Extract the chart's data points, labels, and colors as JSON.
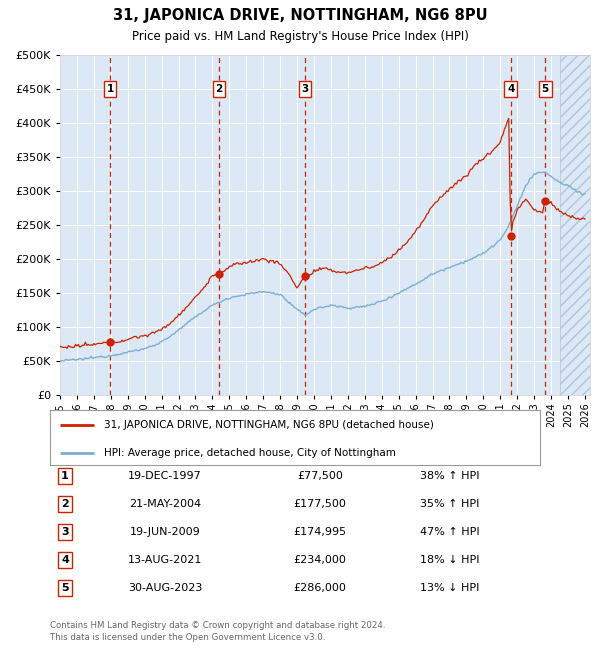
{
  "title": "31, JAPONICA DRIVE, NOTTINGHAM, NG6 8PU",
  "subtitle": "Price paid vs. HM Land Registry's House Price Index (HPI)",
  "footer1": "Contains HM Land Registry data © Crown copyright and database right 2024.",
  "footer2": "This data is licensed under the Open Government Licence v3.0.",
  "legend_line1": "31, JAPONICA DRIVE, NOTTINGHAM, NG6 8PU (detached house)",
  "legend_line2": "HPI: Average price, detached house, City of Nottingham",
  "sale_points": [
    {
      "label": "1",
      "date": "19-DEC-1997",
      "price": 77500,
      "price_str": "£77,500",
      "pct": "38%",
      "dir": "↑",
      "x_year": 1997.96
    },
    {
      "label": "2",
      "date": "21-MAY-2004",
      "price": 177500,
      "price_str": "£177,500",
      "pct": "35%",
      "dir": "↑",
      "x_year": 2004.39
    },
    {
      "label": "3",
      "date": "19-JUN-2009",
      "price": 174995,
      "price_str": "£174,995",
      "pct": "47%",
      "dir": "↑",
      "x_year": 2009.46
    },
    {
      "label": "4",
      "date": "13-AUG-2021",
      "price": 234000,
      "price_str": "£234,000",
      "pct": "18%",
      "dir": "↓",
      "x_year": 2021.62
    },
    {
      "label": "5",
      "date": "30-AUG-2023",
      "price": 286000,
      "price_str": "£286,000",
      "pct": "13%",
      "dir": "↓",
      "x_year": 2023.66
    }
  ],
  "hpi_color": "#7bafd4",
  "price_color": "#cc2200",
  "bg_color": "#dce8f5",
  "grid_color": "#ffffff",
  "ylim": [
    0,
    500000
  ],
  "xlim_start": 1995.0,
  "xlim_end": 2026.0,
  "hatch_start": 2024.5
}
